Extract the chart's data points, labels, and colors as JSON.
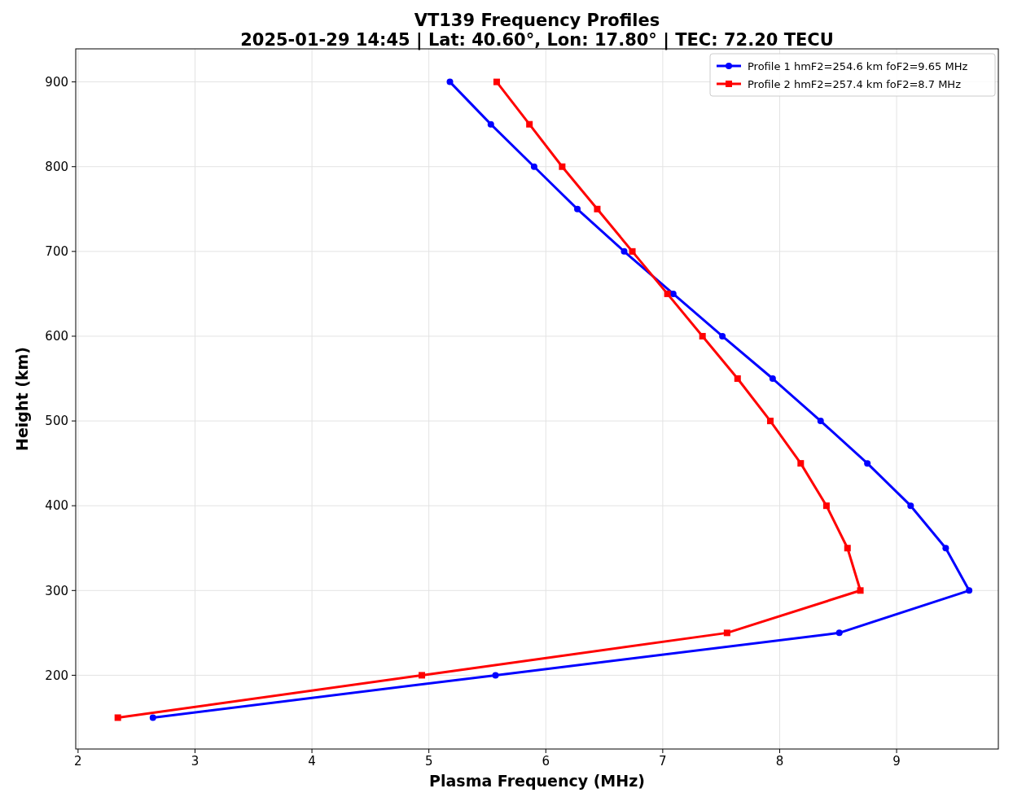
{
  "chart_data": {
    "type": "line",
    "title": "VT139 Frequency Profiles",
    "subtitle": "2025-01-29 14:45 | Lat: 40.60°, Lon: 17.80° | TEC: 72.20 TECU",
    "xlabel": "Plasma Frequency (MHz)",
    "ylabel": "Height (km)",
    "xlim": [
      1.98,
      9.87
    ],
    "ylim": [
      113,
      939
    ],
    "xticks": [
      2,
      3,
      4,
      5,
      6,
      7,
      8,
      9
    ],
    "yticks": [
      200,
      300,
      400,
      500,
      600,
      700,
      800,
      900
    ],
    "grid": true,
    "legend": "top right",
    "line_style": "solid",
    "series": [
      {
        "name": "Profile 1 hmF2=254.6 km foF2=9.65 MHz",
        "color": "#0000ff",
        "marker": "circle",
        "x": [
          5.18,
          5.53,
          5.9,
          6.27,
          6.67,
          7.09,
          7.51,
          7.94,
          8.35,
          8.75,
          9.12,
          9.42,
          9.62,
          8.51,
          5.57,
          2.64
        ],
        "values": [
          900,
          850,
          800,
          750,
          700,
          650,
          600,
          550,
          500,
          450,
          400,
          350,
          300,
          250,
          200,
          150
        ]
      },
      {
        "name": "Profile 2 hmF2=257.4 km foF2=8.7 MHz",
        "color": "#ff0000",
        "marker": "square",
        "x": [
          5.58,
          5.86,
          6.14,
          6.44,
          6.74,
          7.04,
          7.34,
          7.64,
          7.92,
          8.18,
          8.4,
          8.58,
          8.69,
          7.55,
          4.94,
          2.34
        ],
        "values": [
          900,
          850,
          800,
          750,
          700,
          650,
          600,
          550,
          500,
          450,
          400,
          350,
          300,
          250,
          200,
          150
        ]
      }
    ]
  }
}
